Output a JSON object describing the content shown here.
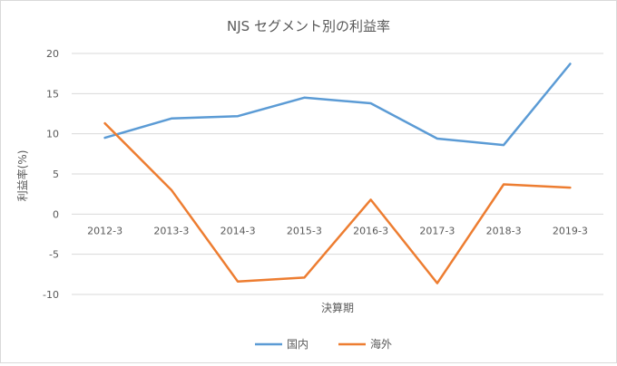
{
  "chart_data": {
    "type": "line",
    "title": "NJS セグメント別の利益率",
    "xlabel": "決算期",
    "ylabel": "利益率(%)",
    "categories": [
      "2012-3",
      "2013-3",
      "2014-3",
      "2015-3",
      "2016-3",
      "2017-3",
      "2018-3",
      "2019-3"
    ],
    "ylim": [
      -10,
      20
    ],
    "yticks": [
      20,
      15,
      10,
      5,
      0,
      -5,
      -10
    ],
    "grid": true,
    "legend_position": "bottom",
    "series": [
      {
        "name": "国内",
        "color": "#5b9bd5",
        "values": [
          9.5,
          11.9,
          12.2,
          14.5,
          13.8,
          9.4,
          8.6,
          18.7
        ]
      },
      {
        "name": "海外",
        "color": "#ed7d31",
        "values": [
          11.3,
          3.0,
          -8.4,
          -7.9,
          1.8,
          -8.6,
          3.7,
          3.3
        ]
      }
    ]
  }
}
